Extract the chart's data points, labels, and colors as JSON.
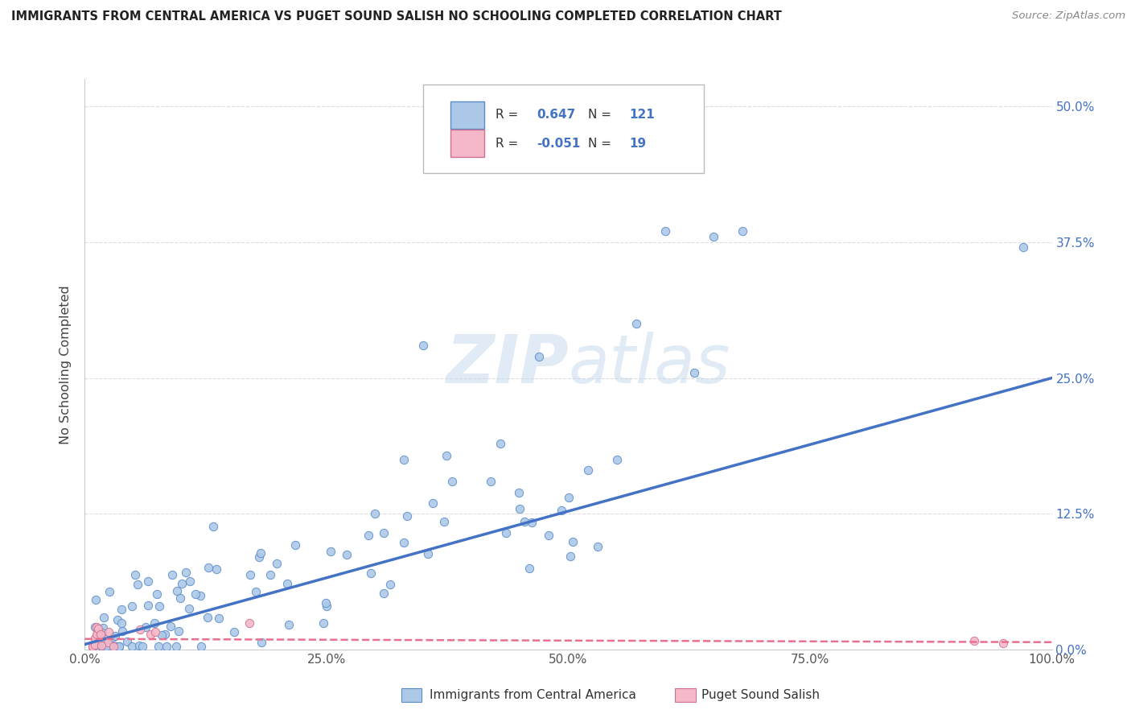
{
  "title": "IMMIGRANTS FROM CENTRAL AMERICA VS PUGET SOUND SALISH NO SCHOOLING COMPLETED CORRELATION CHART",
  "source": "Source: ZipAtlas.com",
  "ylabel": "No Schooling Completed",
  "watermark": "ZIPatlas",
  "xlim": [
    0,
    1.0
  ],
  "ylim": [
    0,
    0.525
  ],
  "xticks": [
    0.0,
    0.25,
    0.5,
    0.75,
    1.0
  ],
  "yticks": [
    0.0,
    0.125,
    0.25,
    0.375,
    0.5
  ],
  "blue_R": 0.647,
  "blue_N": 121,
  "pink_R": -0.051,
  "pink_N": 19,
  "blue_color": "#adc9e8",
  "pink_color": "#f4b8c8",
  "blue_edge_color": "#5b8cc8",
  "pink_edge_color": "#d07090",
  "blue_line_color": "#4472c4",
  "pink_line_color": "#e87090",
  "legend_label_1": "Immigrants from Central America",
  "legend_label_2": "Puget Sound Salish",
  "background_color": "#ffffff",
  "grid_color": "#dddddd",
  "title_color": "#222222",
  "source_color": "#888888",
  "ylabel_color": "#444444",
  "right_label_color": "#4472c4",
  "stats_text_color": "#333333"
}
